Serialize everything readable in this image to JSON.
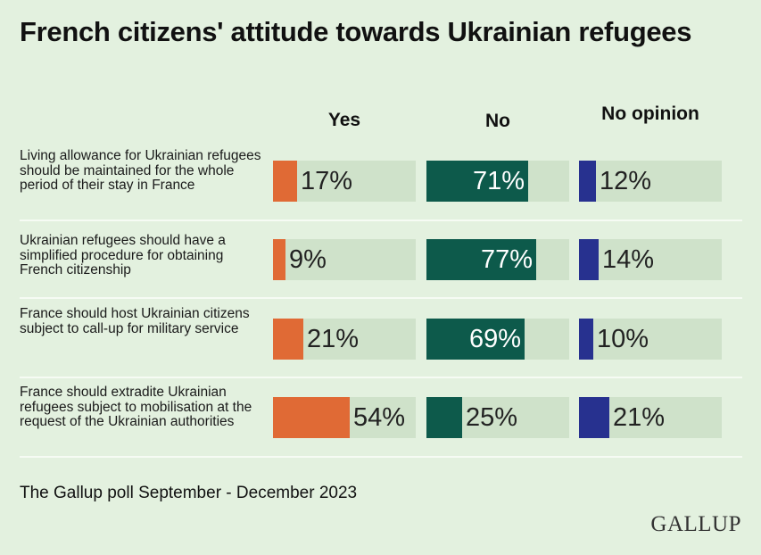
{
  "chart_data": {
    "type": "bar",
    "title": "French citizens' attitude towards Ukrainian refugees",
    "categories": [
      "Living allowance for Ukrainian refugees should be maintained for the whole period of their stay in France",
      "Ukrainian refugees should have a simplified procedure for obtaining French citizenship",
      "France should host Ukrainian citizens subject to call-up for military service",
      "France should extradite Ukrainian refugees subject to mobilisation at the request of the Ukrainian authorities"
    ],
    "series": [
      {
        "name": "Yes",
        "color": "#e06a35",
        "values": [
          17,
          9,
          21,
          54
        ]
      },
      {
        "name": "No",
        "color": "#0d5a4b",
        "values": [
          71,
          77,
          69,
          25
        ]
      },
      {
        "name": "No opinion",
        "color": "#27318f",
        "values": [
          12,
          14,
          10,
          21
        ]
      }
    ],
    "value_suffix": "%",
    "xlim": [
      0,
      100
    ]
  },
  "footer": "The Gallup poll September - December 2023",
  "logo": "GALLUP",
  "colors": {
    "background": "#e3f1df",
    "track": "#cfe2ca"
  }
}
